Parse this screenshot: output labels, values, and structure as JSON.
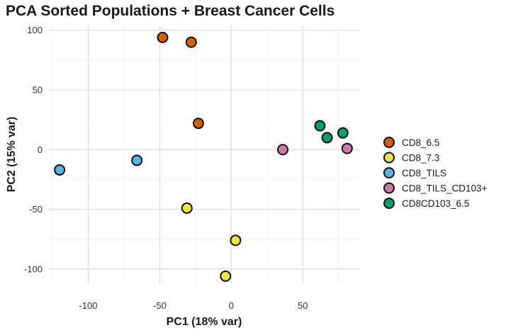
{
  "chart_data": {
    "type": "scatter",
    "title": "PCA Sorted Populations + Breast Cancer Cells",
    "xlabel": "PC1 (18% var)",
    "ylabel": "PC2 (15% var)",
    "xlim": [
      -128,
      90
    ],
    "ylim": [
      -112,
      104
    ],
    "xticks": [
      -100,
      -50,
      0,
      50
    ],
    "yticks": [
      -100,
      -50,
      0,
      50,
      100
    ],
    "xtick_labels": [
      "-100",
      "-50",
      "0",
      "50"
    ],
    "ytick_labels": [
      "-100",
      "-50",
      "0",
      "50",
      "100"
    ],
    "grid": true,
    "legend_position": "right",
    "series": [
      {
        "name": "CD8_6.5",
        "color": "#D55E00",
        "points": [
          {
            "x": -48,
            "y": 94
          },
          {
            "x": -28,
            "y": 90
          },
          {
            "x": -23,
            "y": 22
          }
        ]
      },
      {
        "name": "CD8_7.3",
        "color": "#F0E442",
        "points": [
          {
            "x": -31,
            "y": -49
          },
          {
            "x": 3,
            "y": -76
          },
          {
            "x": -4,
            "y": -106
          }
        ]
      },
      {
        "name": "CD8_TILS",
        "color": "#56B4E9",
        "points": [
          {
            "x": -120,
            "y": -17
          },
          {
            "x": -66,
            "y": -9
          }
        ]
      },
      {
        "name": "CD8_TILS_CD103+",
        "color": "#CC79A7",
        "points": [
          {
            "x": 36,
            "y": 0
          },
          {
            "x": 81,
            "y": 1
          }
        ]
      },
      {
        "name": "CD8CD103_6.5",
        "color": "#009E73",
        "points": [
          {
            "x": 62,
            "y": 20
          },
          {
            "x": 67,
            "y": 10
          },
          {
            "x": 78,
            "y": 14
          }
        ]
      }
    ]
  }
}
